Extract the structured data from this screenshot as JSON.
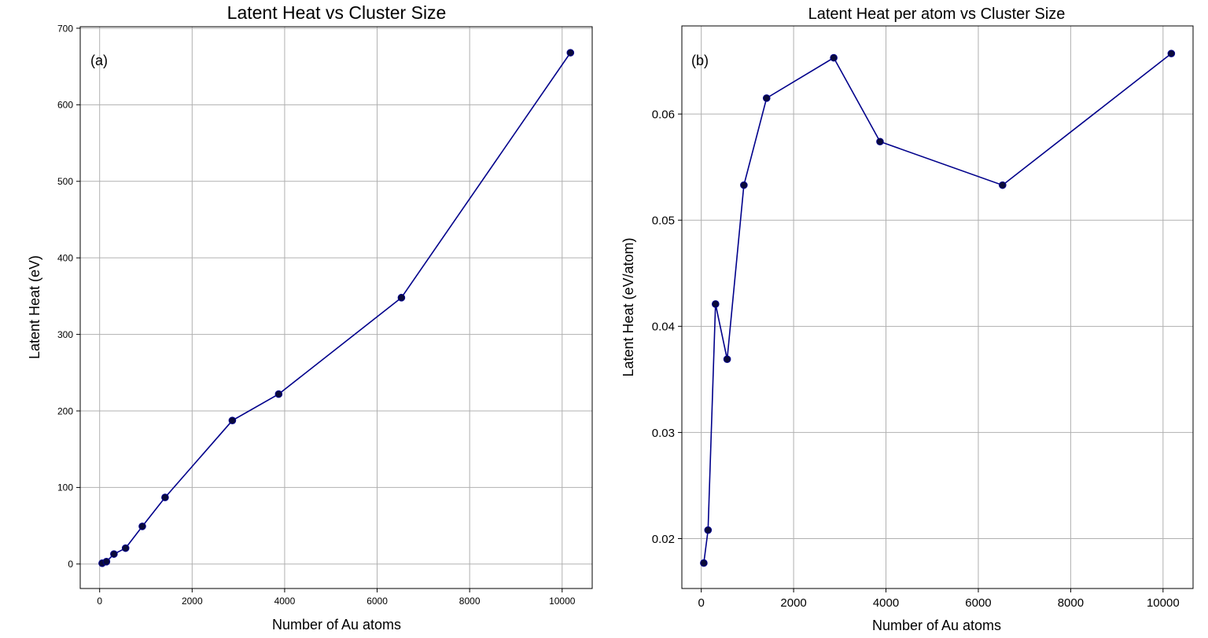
{
  "colors": {
    "line": "#00008b",
    "marker": "#0a0a3a",
    "grid": "#b0b0b0"
  },
  "chart_data": [
    {
      "type": "line",
      "title": "Latent Heat vs Cluster Size",
      "xlabel": "Number of Au atoms",
      "ylabel": "Latent Heat (eV)",
      "annotation": "(a)",
      "xlim": [
        -420,
        10650
      ],
      "ylim": [
        -32,
        702
      ],
      "x_ticks": [
        0,
        2000,
        4000,
        6000,
        8000,
        10000
      ],
      "y_ticks": [
        0,
        100,
        200,
        300,
        400,
        500,
        600,
        700
      ],
      "x_tick_labels": [
        "0",
        "2000",
        "4000",
        "6000",
        "8000",
        "10000"
      ],
      "y_tick_labels": [
        "0",
        "100",
        "200",
        "300",
        "400",
        "500",
        "600",
        "700"
      ],
      "grid": true,
      "series": [
        {
          "x": [
            55,
            147,
            309,
            561,
            923,
            1415,
            2869,
            3871,
            6525,
            10179
          ],
          "y": [
            1.0,
            3.1,
            13.0,
            20.7,
            49.2,
            87.0,
            187.5,
            222.0,
            348.0,
            668.0
          ]
        }
      ]
    },
    {
      "type": "line",
      "title": "Latent Heat per atom vs Cluster Size",
      "xlabel": "Number of Au atoms",
      "ylabel": "Latent Heat (eV/atom)",
      "annotation": "(b)",
      "xlim": [
        -420,
        10650
      ],
      "ylim": [
        0.0153,
        0.0683
      ],
      "x_ticks": [
        0,
        2000,
        4000,
        6000,
        8000,
        10000
      ],
      "y_ticks": [
        0.02,
        0.03,
        0.04,
        0.05,
        0.06
      ],
      "x_tick_labels": [
        "0",
        "2000",
        "4000",
        "6000",
        "8000",
        "10000"
      ],
      "y_tick_labels": [
        "0.02",
        "0.03",
        "0.04",
        "0.05",
        "0.06"
      ],
      "grid": true,
      "series": [
        {
          "x": [
            55,
            147,
            309,
            561,
            923,
            1415,
            2869,
            3871,
            6525,
            10179
          ],
          "y": [
            0.0177,
            0.0208,
            0.0421,
            0.0369,
            0.0533,
            0.0615,
            0.0653,
            0.0574,
            0.0533,
            0.0657
          ]
        }
      ]
    }
  ]
}
